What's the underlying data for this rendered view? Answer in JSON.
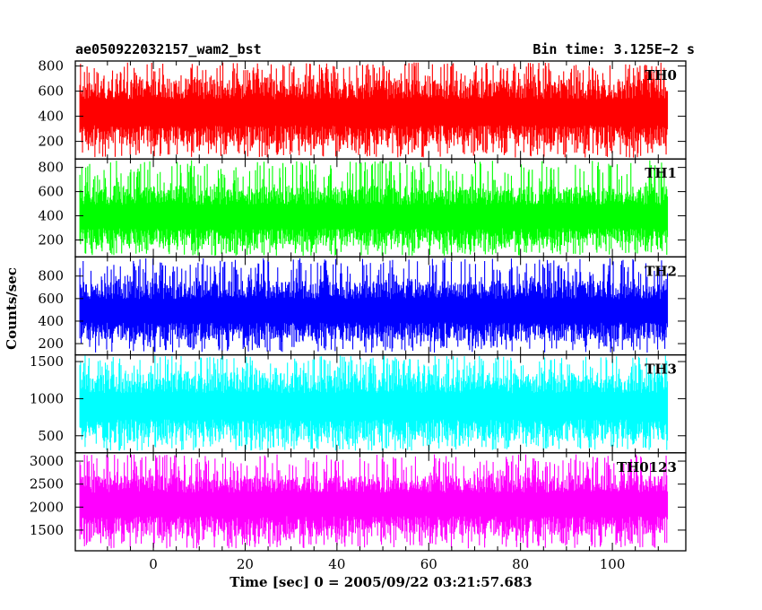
{
  "header": {
    "left_title": "ae050922032157_wam2_bst",
    "right_title": "Bin time: 3.125E−2 s"
  },
  "axes": {
    "ylabel": "Counts/sec",
    "xlabel": "Time [sec] 0 = 2005/09/22 03:21:57.683"
  },
  "chart_data": {
    "type": "line",
    "title": "ae050922032157_wam2_bst",
    "subtitle": "Bin time: 3.125E−2 s",
    "xlabel": "Time [sec] 0 = 2005/09/22 03:21:57.683",
    "ylabel": "Counts/sec",
    "xlim": [
      -17,
      116
    ],
    "x_range_data": [
      -16,
      112
    ],
    "x_ticks": [
      0,
      20,
      40,
      60,
      80,
      100
    ],
    "x_tick_labels": [
      "0",
      "20",
      "40",
      "60",
      "80",
      "100"
    ],
    "grid": false,
    "legend": "none",
    "panels": [
      {
        "name": "TH0",
        "color": "#ff0000",
        "ylim": [
          60,
          840
        ],
        "mean": 400,
        "low": 160,
        "high": 700,
        "min": 70,
        "max": 830,
        "yticks": [
          200,
          400,
          600,
          800
        ],
        "ytick_labels": [
          "200",
          "400",
          "600",
          "800"
        ]
      },
      {
        "name": "TH1",
        "color": "#00ff00",
        "ylim": [
          60,
          870
        ],
        "mean": 360,
        "low": 150,
        "high": 650,
        "min": 70,
        "max": 860,
        "yticks": [
          200,
          400,
          600,
          800
        ],
        "ytick_labels": [
          "200",
          "400",
          "600",
          "800"
        ]
      },
      {
        "name": "TH2",
        "color": "#0000ff",
        "ylim": [
          100,
          970
        ],
        "mean": 460,
        "low": 220,
        "high": 760,
        "min": 120,
        "max": 960,
        "yticks": [
          200,
          400,
          600,
          800
        ],
        "ytick_labels": [
          "200",
          "400",
          "600",
          "800"
        ]
      },
      {
        "name": "TH3",
        "color": "#00ffff",
        "ylim": [
          270,
          1590
        ],
        "mean": 850,
        "low": 420,
        "high": 1350,
        "min": 300,
        "max": 1580,
        "yticks": [
          500,
          1000,
          1500
        ],
        "ytick_labels": [
          "500",
          "1000",
          "1500"
        ]
      },
      {
        "name": "TH0123",
        "color": "#ff00ff",
        "ylim": [
          1050,
          3180
        ],
        "mean": 2000,
        "low": 1350,
        "high": 2700,
        "min": 1100,
        "max": 3150,
        "yticks": [
          1500,
          2000,
          2500,
          3000
        ],
        "ytick_labels": [
          "1500",
          "2000",
          "2500",
          "3000"
        ]
      }
    ]
  }
}
